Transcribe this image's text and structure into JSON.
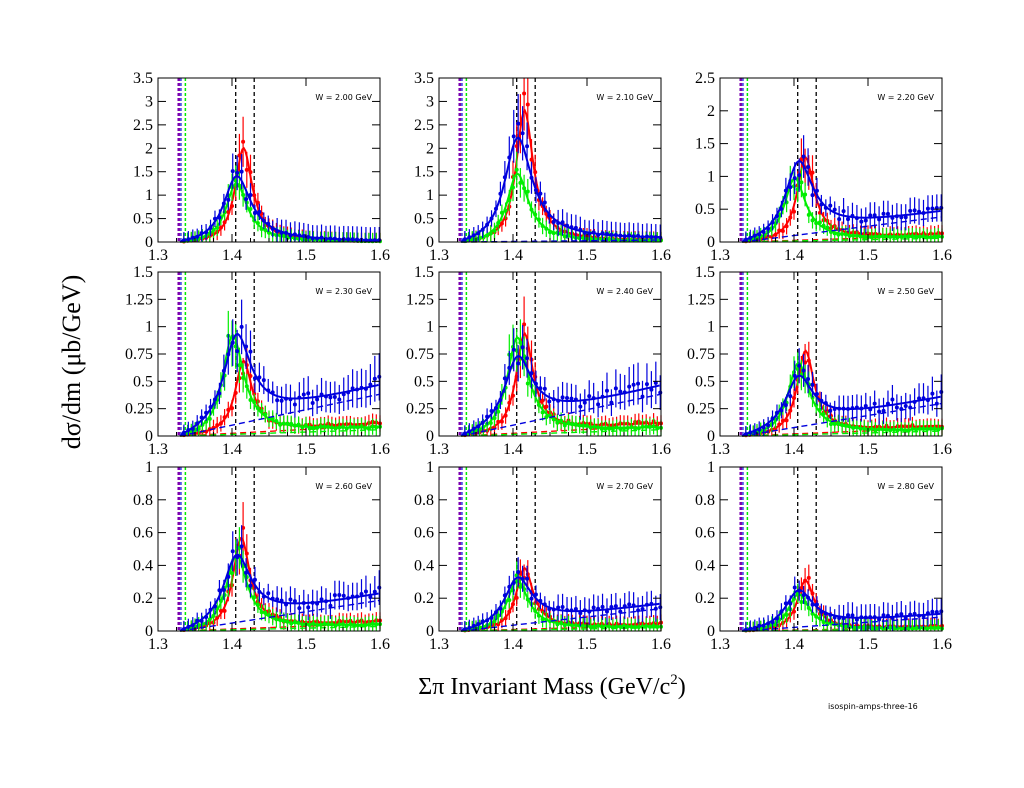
{
  "figure": {
    "ylabel": "dσ/dm (μb/GeV)",
    "xlabel_main": "Σπ Invariant Mass (GeV/c",
    "xlabel_sup": "2",
    "xlabel_close": ")",
    "footer": "isospin-amps-three-16"
  },
  "colors": {
    "red": "#ff0000",
    "blue": "#0000dd",
    "green": "#00ee00",
    "purple": "#7a00b0",
    "black": "#000000"
  },
  "chart_data": [
    {
      "type": "scatter",
      "label": "W = 2.00 GeV",
      "xlim": [
        1.3,
        1.6
      ],
      "ylim": [
        0,
        3.5
      ],
      "yticks": [
        "0",
        "0.5",
        "1",
        "1.5",
        "2",
        "2.5",
        "3",
        "3.5"
      ],
      "xticks": [
        "1.3",
        "1.4",
        "1.5",
        "1.6"
      ],
      "peaks": {
        "red": [
          1.415,
          2.0
        ],
        "green": [
          1.405,
          1.25
        ],
        "blue": [
          1.405,
          1.4
        ],
        "blue_tail": 0.0
      }
    },
    {
      "type": "scatter",
      "label": "W = 2.10 GeV",
      "xlim": [
        1.3,
        1.6
      ],
      "ylim": [
        0,
        3.5
      ],
      "yticks": [
        "0",
        "0.5",
        "1",
        "1.5",
        "2",
        "2.5",
        "3",
        "3.5"
      ],
      "xticks": [
        "1.3",
        "1.4",
        "1.5",
        "1.6"
      ],
      "peaks": {
        "red": [
          1.415,
          2.8
        ],
        "green": [
          1.405,
          1.45
        ],
        "blue": [
          1.405,
          2.2
        ],
        "blue_tail": 0.05
      }
    },
    {
      "type": "scatter",
      "label": "W = 2.20 GeV",
      "xlim": [
        1.3,
        1.6
      ],
      "ylim": [
        0,
        2.5
      ],
      "yticks": [
        "0",
        "0.5",
        "1",
        "1.5",
        "2",
        "2.5"
      ],
      "xticks": [
        "1.3",
        "1.4",
        "1.5",
        "1.6"
      ],
      "peaks": {
        "red": [
          1.415,
          1.25
        ],
        "green": [
          1.4,
          0.95
        ],
        "blue": [
          1.405,
          1.1
        ],
        "blue_tail": 0.45
      }
    },
    {
      "type": "scatter",
      "label": "W = 2.30 GeV",
      "xlim": [
        1.3,
        1.6
      ],
      "ylim": [
        0,
        1.5
      ],
      "yticks": [
        "0",
        "0.25",
        "0.5",
        "0.75",
        "1",
        "1.25",
        "1.5"
      ],
      "xticks": [
        "1.3",
        "1.4",
        "1.5",
        "1.6"
      ],
      "peaks": {
        "red": [
          1.415,
          0.65
        ],
        "green": [
          1.4,
          0.9
        ],
        "blue": [
          1.405,
          0.8
        ],
        "blue_tail": 0.45
      }
    },
    {
      "type": "scatter",
      "label": "W = 2.40 GeV",
      "xlim": [
        1.3,
        1.6
      ],
      "ylim": [
        0,
        1.5
      ],
      "yticks": [
        "0",
        "0.25",
        "0.5",
        "0.75",
        "1",
        "1.25",
        "1.5"
      ],
      "xticks": [
        "1.3",
        "1.4",
        "1.5",
        "1.6"
      ],
      "peaks": {
        "red": [
          1.415,
          0.9
        ],
        "green": [
          1.405,
          0.88
        ],
        "blue": [
          1.405,
          0.6
        ],
        "blue_tail": 0.45
      }
    },
    {
      "type": "scatter",
      "label": "W = 2.50 GeV",
      "xlim": [
        1.3,
        1.6
      ],
      "ylim": [
        0,
        1.5
      ],
      "yticks": [
        "0",
        "0.25",
        "0.5",
        "0.75",
        "1",
        "1.25",
        "1.5"
      ],
      "xticks": [
        "1.3",
        "1.4",
        "1.5",
        "1.6"
      ],
      "peaks": {
        "red": [
          1.415,
          0.75
        ],
        "green": [
          1.405,
          0.65
        ],
        "blue": [
          1.405,
          0.45
        ],
        "blue_tail": 0.35
      }
    },
    {
      "type": "scatter",
      "label": "W = 2.60 GeV",
      "xlim": [
        1.3,
        1.6
      ],
      "ylim": [
        0,
        1
      ],
      "yticks": [
        "0",
        "0.2",
        "0.4",
        "0.6",
        "0.8",
        "1"
      ],
      "xticks": [
        "1.3",
        "1.4",
        "1.5",
        "1.6"
      ],
      "peaks": {
        "red": [
          1.412,
          0.55
        ],
        "green": [
          1.405,
          0.45
        ],
        "blue": [
          1.405,
          0.4
        ],
        "blue_tail": 0.22
      }
    },
    {
      "type": "scatter",
      "label": "W = 2.70 GeV",
      "xlim": [
        1.3,
        1.6
      ],
      "ylim": [
        0,
        1
      ],
      "yticks": [
        "0",
        "0.2",
        "0.4",
        "0.6",
        "0.8",
        "1"
      ],
      "xticks": [
        "1.3",
        "1.4",
        "1.5",
        "1.6"
      ],
      "peaks": {
        "red": [
          1.415,
          0.37
        ],
        "green": [
          1.405,
          0.3
        ],
        "blue": [
          1.405,
          0.28
        ],
        "blue_tail": 0.16
      }
    },
    {
      "type": "scatter",
      "label": "W = 2.80 GeV",
      "xlim": [
        1.3,
        1.6
      ],
      "ylim": [
        0,
        1
      ],
      "yticks": [
        "0",
        "0.2",
        "0.4",
        "0.6",
        "0.8",
        "1"
      ],
      "xticks": [
        "1.3",
        "1.4",
        "1.5",
        "1.6"
      ],
      "peaks": {
        "red": [
          1.415,
          0.3
        ],
        "green": [
          1.405,
          0.22
        ],
        "blue": [
          1.405,
          0.22
        ],
        "blue_tail": 0.1
      }
    }
  ],
  "reference_lines": {
    "purple": 1.328,
    "blue_dash": 1.331,
    "green": 1.337,
    "black": [
      1.405,
      1.43
    ]
  }
}
